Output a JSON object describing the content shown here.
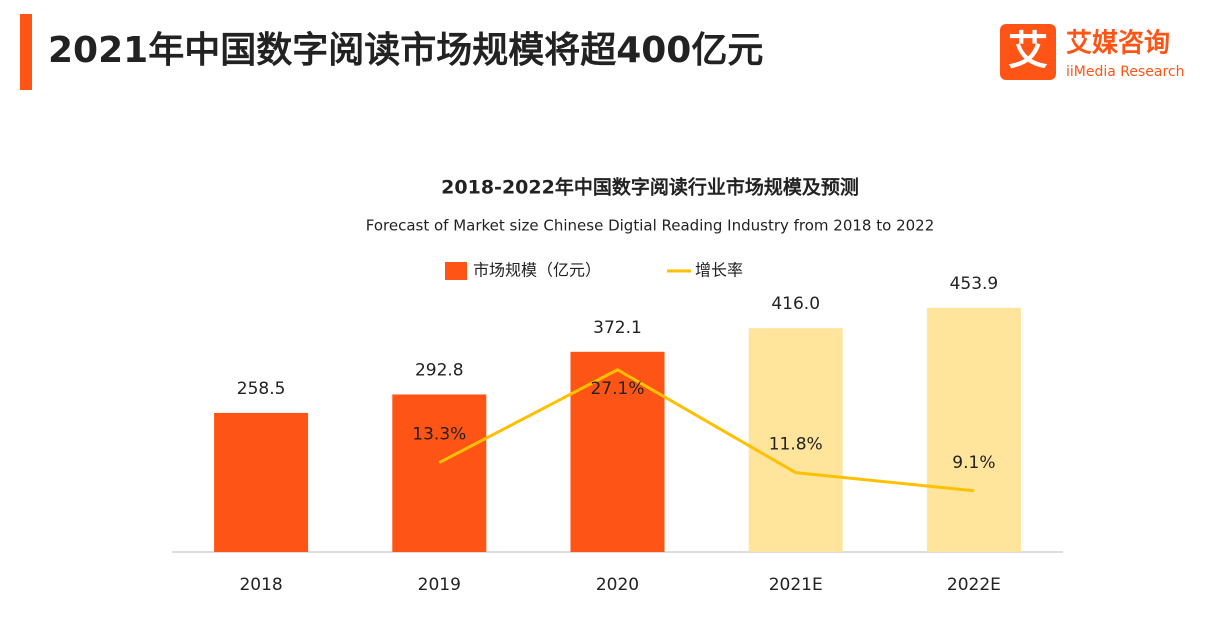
{
  "header": {
    "title": "2021年中国数字阅读市场规模将超400亿元",
    "logo": {
      "icon": "艾",
      "name": "艾媒咨询",
      "sub": "iiMedia Research"
    }
  },
  "chart_data": {
    "type": "bar",
    "title": "2018-2022年中国数字阅读行业市场规模及预测",
    "subtitle": "Forecast of Market size Chinese Digtial Reading Industry from 2018 to 2022",
    "categories": [
      "2018",
      "2019",
      "2020",
      "2021E",
      "2022E"
    ],
    "ylim": [
      0,
      500
    ],
    "y2lim": [
      0,
      40
    ],
    "series": [
      {
        "name": "市场规模（亿元）",
        "type": "bar",
        "color": "#fe5516",
        "colors": [
          "#fe5516",
          "#fe5516",
          "#fe5516",
          "#ffe49c",
          "#ffe49c"
        ],
        "values": [
          258.5,
          292.8,
          372.1,
          416.0,
          453.9
        ],
        "value_labels": [
          "258.5",
          "292.8",
          "372.1",
          "416.0",
          "453.9"
        ]
      },
      {
        "name": "增长率",
        "type": "line",
        "axis": "y2",
        "color": "#ffc000",
        "values": [
          null,
          13.3,
          27.1,
          11.8,
          9.1
        ],
        "value_labels": [
          null,
          "13.3%",
          "27.1%",
          "11.8%",
          "9.1%"
        ]
      }
    ]
  }
}
